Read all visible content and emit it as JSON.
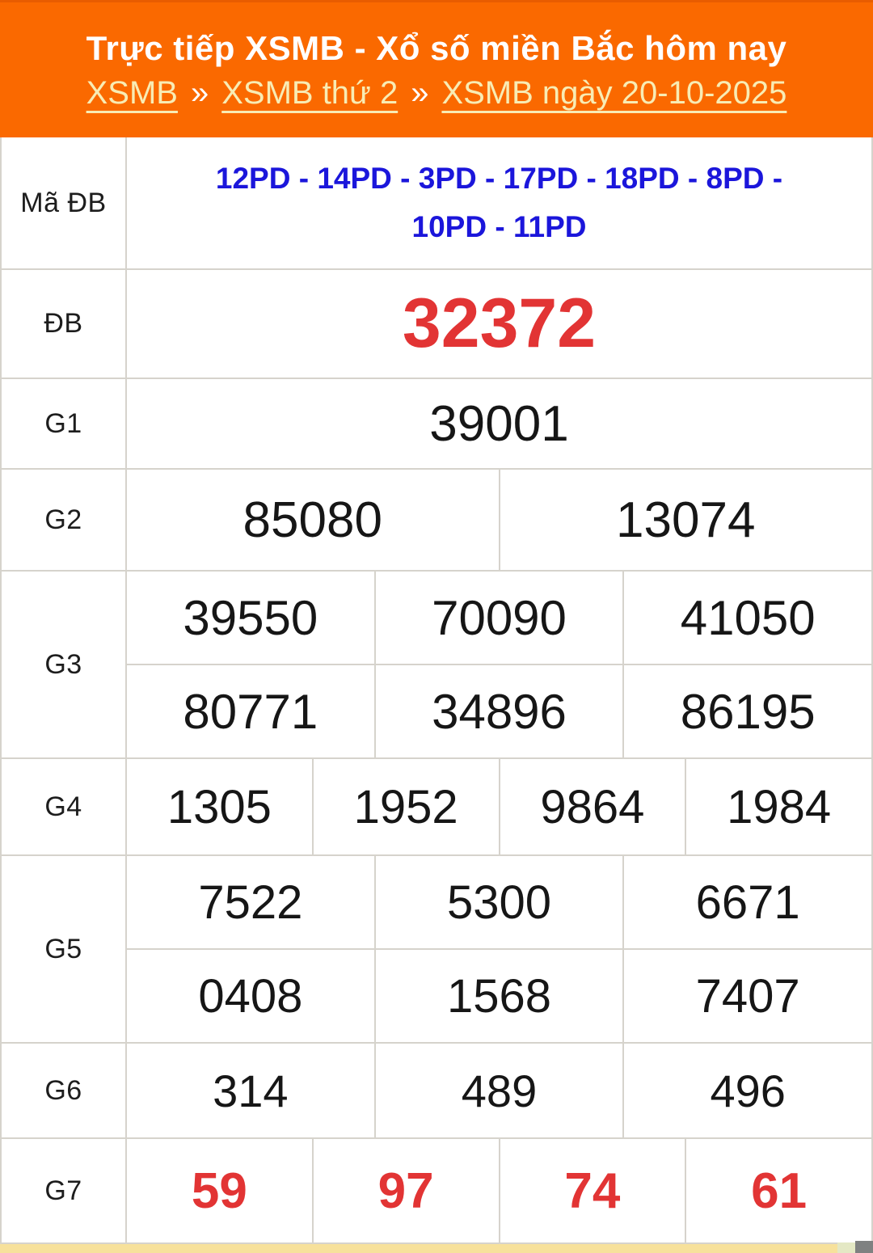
{
  "header": {
    "title": "Trực tiếp XSMB - Xổ số miền Bắc hôm nay",
    "breadcrumb": {
      "separator": "»",
      "items": [
        "XSMB",
        "XSMB thứ 2",
        "XSMB ngày 20-10-2025"
      ]
    }
  },
  "table": {
    "rows": [
      {
        "label": "Mã ĐB",
        "value": "12PD - 14PD - 3PD - 17PD - 18PD - 8PD - 10PD - 11PD"
      },
      {
        "label": "ĐB",
        "value": "32372"
      },
      {
        "label": "G1",
        "value": "39001"
      },
      {
        "label": "G2",
        "values": [
          "85080",
          "13074"
        ]
      },
      {
        "label": "G3",
        "line1": [
          "39550",
          "70090",
          "41050"
        ],
        "line2": [
          "80771",
          "34896",
          "86195"
        ]
      },
      {
        "label": "G4",
        "values": [
          "1305",
          "1952",
          "9864",
          "1984"
        ]
      },
      {
        "label": "G5",
        "line1": [
          "7522",
          "5300",
          "6671"
        ],
        "line2": [
          "0408",
          "1568",
          "7407"
        ]
      },
      {
        "label": "G6",
        "values": [
          "314",
          "489",
          "496"
        ]
      },
      {
        "label": "G7",
        "values": [
          "59",
          "97",
          "74",
          "61"
        ]
      }
    ]
  },
  "colors": {
    "header_background": "#FA6900",
    "title_text": "#FFFFFF",
    "breadcrumb_link": "#F8ECB4",
    "special_prize_red": "#E23434",
    "code_blue": "#1B16DB",
    "number_black": "#161616",
    "table_border": "#D6D3CC",
    "bottom_strip_yellow": "#F7E19B",
    "bottom_strip_green": "#E4E8C4",
    "bottom_corner_gray": "#7F8181"
  }
}
